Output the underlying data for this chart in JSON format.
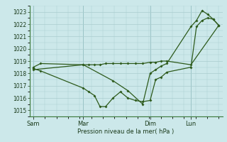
{
  "xlabel": "Pression niveau de la mer( hPa )",
  "bg_color": "#cce8ea",
  "grid_color": "#aaccce",
  "line_color": "#2d5a1b",
  "ylim": [
    1014.5,
    1023.5
  ],
  "yticks": [
    1015,
    1016,
    1017,
    1018,
    1019,
    1020,
    1021,
    1022,
    1023
  ],
  "xtick_labels": [
    "Sam",
    "Mar",
    "Dim",
    "Lun"
  ],
  "xtick_positions": [
    0,
    0.27,
    0.63,
    0.85
  ],
  "series1_x": [
    0.0,
    0.04,
    0.27,
    0.3,
    0.33,
    0.36,
    0.39,
    0.43,
    0.47,
    0.51,
    0.55,
    0.59,
    0.63,
    0.66,
    0.69,
    0.72,
    0.85,
    0.88,
    0.91,
    0.94,
    0.97,
    1.0
  ],
  "series1_y": [
    1018.4,
    1018.2,
    1016.8,
    1016.5,
    1016.2,
    1015.3,
    1015.3,
    1016.0,
    1016.5,
    1016.0,
    1015.8,
    1015.7,
    1015.8,
    1017.5,
    1017.7,
    1018.1,
    1018.5,
    1021.8,
    1022.3,
    1022.5,
    1022.4,
    1021.9
  ],
  "series2_x": [
    0.0,
    0.04,
    0.27,
    0.3,
    0.33,
    0.36,
    0.39,
    0.43,
    0.47,
    0.51,
    0.55,
    0.59,
    0.63,
    0.66,
    0.69,
    0.72,
    0.85,
    1.0
  ],
  "series2_y": [
    1018.5,
    1018.8,
    1018.7,
    1018.7,
    1018.7,
    1018.7,
    1018.8,
    1018.8,
    1018.8,
    1018.8,
    1018.8,
    1018.8,
    1018.9,
    1018.9,
    1019.0,
    1019.0,
    1018.7,
    1021.9
  ],
  "series3_x": [
    0.0,
    0.27,
    0.43,
    0.51,
    0.59,
    0.63,
    0.66,
    0.69,
    0.72,
    0.85,
    0.88,
    0.91,
    0.94,
    0.97,
    1.0
  ],
  "series3_y": [
    1018.3,
    1018.7,
    1017.4,
    1016.6,
    1015.5,
    1018.0,
    1018.3,
    1018.6,
    1018.8,
    1021.8,
    1022.3,
    1023.1,
    1022.8,
    1022.4,
    1021.9
  ]
}
